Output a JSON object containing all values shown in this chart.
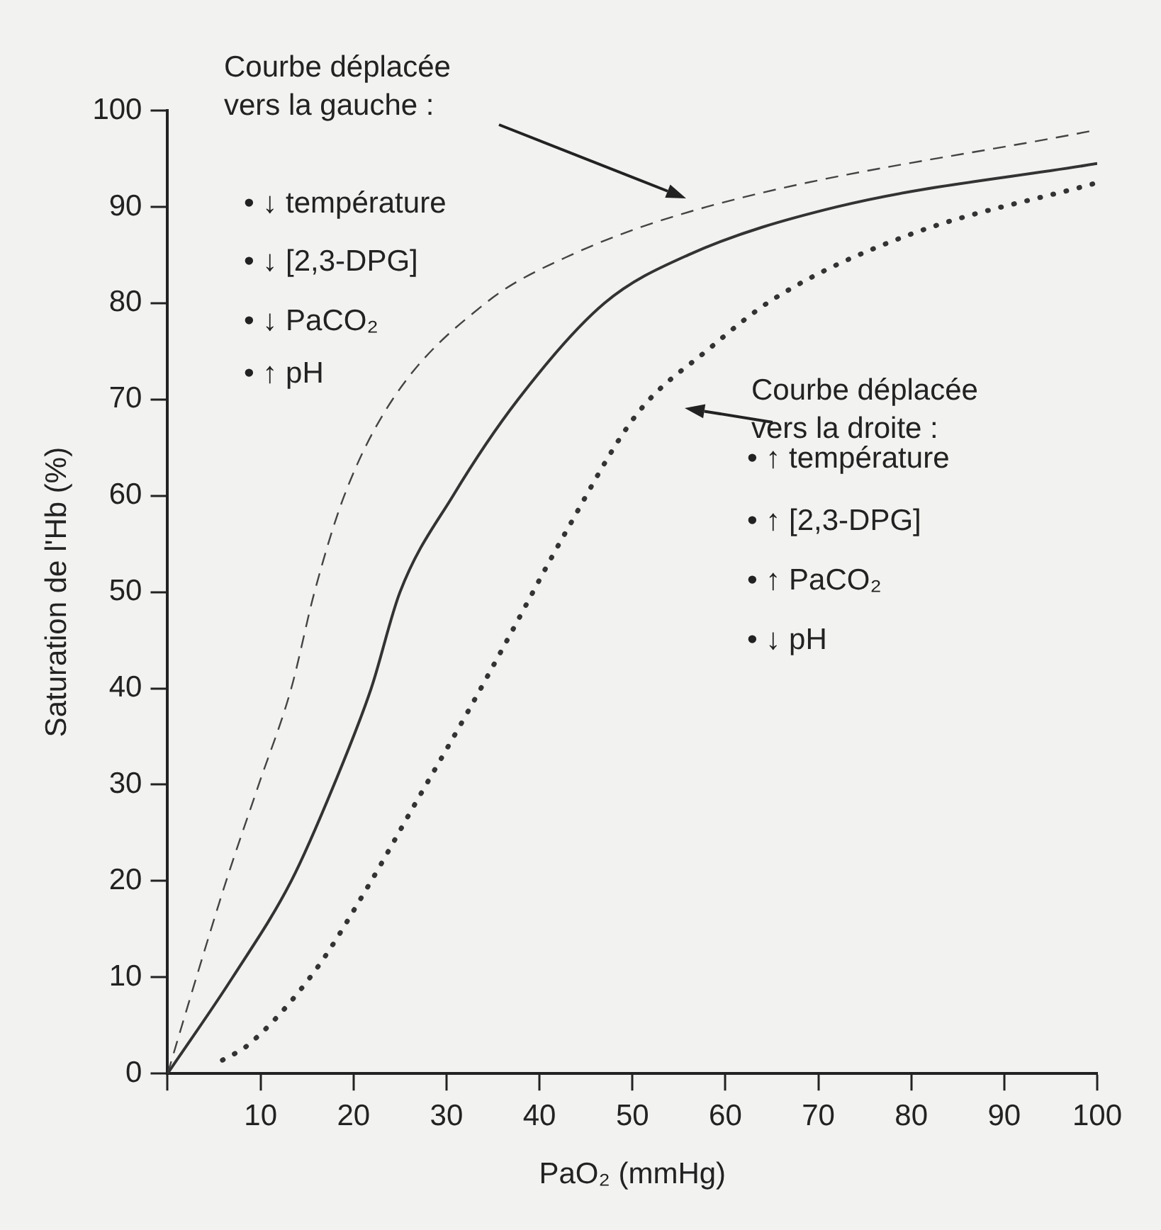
{
  "chart_data": {
    "type": "line",
    "xlabel": "PaO₂ (mmHg)",
    "ylabel": "Saturation de l'Hb (%)",
    "xlim": [
      0,
      100
    ],
    "ylim": [
      0,
      100
    ],
    "xticks": [
      {
        "value": 0,
        "label": null
      },
      10,
      20,
      30,
      40,
      50,
      60,
      70,
      80,
      90,
      100
    ],
    "yticks": [
      0,
      10,
      20,
      30,
      40,
      50,
      60,
      70,
      80,
      90,
      100
    ],
    "grid": false,
    "legend": false,
    "marker": "none",
    "series": [
      {
        "color": "#333333",
        "line_style": "solid",
        "x": [
          0,
          7,
          13.3,
          17.9,
          21.9,
          25,
          30.7,
          37.7,
          47,
          56,
          72,
          100
        ],
        "values": [
          0,
          10,
          20,
          30,
          40,
          50,
          60,
          70,
          80,
          85,
          90,
          94.5
        ]
      },
      {
        "color": "#444444",
        "line_style": "dashed",
        "x": [
          0,
          3.1,
          6.3,
          9.8,
          13.3,
          15.8,
          19,
          24.2,
          34.2,
          43.4,
          58,
          100
        ],
        "values": [
          0,
          10,
          20,
          30,
          40,
          50,
          60,
          70,
          80,
          85,
          90,
          98
        ]
      },
      {
        "color": "#333333",
        "line_style": "dotted",
        "x": [
          5.9,
          8.7,
          15.8,
          21.6,
          26.5,
          32.2,
          36.3,
          42.7,
          50.5,
          58.3,
          65.3,
          79.5,
          100
        ],
        "values": [
          1.4,
          3,
          10.6,
          19.5,
          27.8,
          37.4,
          44.6,
          56,
          68.5,
          75.3,
          80.5,
          87,
          92.5
        ]
      }
    ],
    "annotations": [
      "Courbe déplacée vers la gauche :",
      "• ↓ température",
      "• ↓ [2,3-DPG]",
      "• ↓ PaCO₂",
      "• ↑ pH",
      "Courbe déplacée vers la droite :",
      "• ↑ température",
      "• ↑ [2,3-DPG]",
      "• ↑ PaCO₂",
      "• ↓ pH"
    ]
  }
}
